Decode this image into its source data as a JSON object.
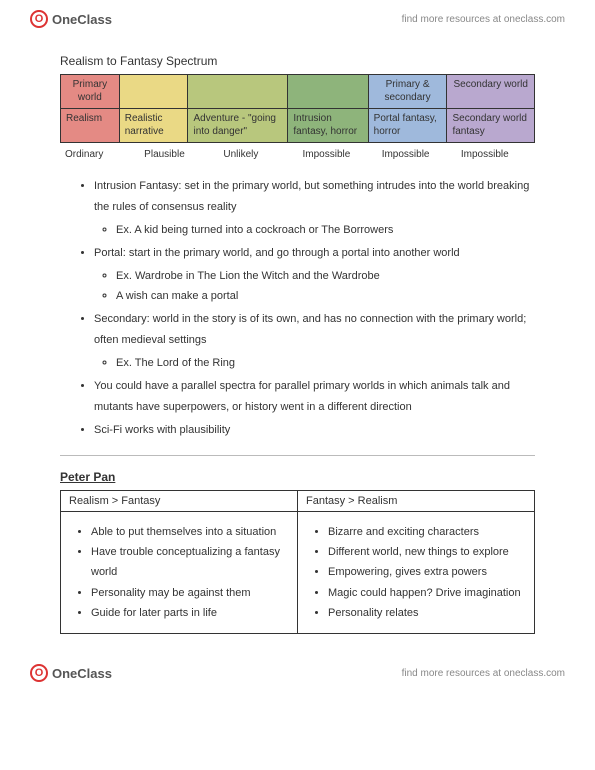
{
  "brand": {
    "icon_letter": "O",
    "name": "OneClass",
    "tagline": "find more resources at oneclass.com",
    "icon_border_color": "#d33"
  },
  "title": "Realism to Fantasy Spectrum",
  "spectrum": {
    "header_cells": [
      {
        "text": "Primary world",
        "bg": "#e48a84",
        "align": "center"
      },
      {
        "text": "",
        "bg": "#ead985",
        "align": "left"
      },
      {
        "text": "",
        "bg": "#b8c77d",
        "align": "left"
      },
      {
        "text": "",
        "bg": "#8eb47b",
        "align": "left"
      },
      {
        "text": "Primary & secondary",
        "bg": "#9fb9dc",
        "align": "center"
      },
      {
        "text": "Secondary world",
        "bg": "#b9a8cf",
        "align": "center"
      }
    ],
    "row_cells": [
      {
        "text": "Realism",
        "bg": "#e48a84"
      },
      {
        "text": "Realistic narrative",
        "bg": "#ead985"
      },
      {
        "text": "Adventure - \"going into danger\"",
        "bg": "#b8c77d"
      },
      {
        "text": "Intrusion fantasy, horror",
        "bg": "#8eb47b"
      },
      {
        "text": "Portal fantasy, horror",
        "bg": "#9fb9dc"
      },
      {
        "text": "Secondary world fantasy",
        "bg": "#b9a8cf"
      }
    ],
    "bottom_labels": [
      "Ordinary",
      "Plausible",
      "Unlikely",
      "Impossible",
      "Impossible",
      "Impossible"
    ]
  },
  "notes": [
    {
      "text": "Intrusion Fantasy: set in the primary world, but something intrudes into the world breaking the rules of consensus reality",
      "sub": [
        "Ex. A kid being turned into a cockroach or The Borrowers"
      ]
    },
    {
      "text": "Portal: start in the primary world, and go through a portal into another world",
      "sub": [
        "Ex. Wardrobe in The Lion the Witch and the Wardrobe",
        "A wish can make a portal"
      ]
    },
    {
      "text": "Secondary: world in the story is of its own, and has no connection with the primary world; often medieval settings",
      "sub": [
        "Ex. The Lord of the Ring"
      ]
    },
    {
      "text": "You could have a parallel spectra for parallel primary worlds in which animals talk and mutants have superpowers, or history went in a different direction",
      "sub": []
    },
    {
      "text": "Sci-Fi works with plausibility",
      "sub": []
    }
  ],
  "peter": {
    "title": "Peter Pan",
    "left_head": "Realism > Fantasy",
    "right_head": "Fantasy > Realism",
    "left_items": [
      "Able to put themselves into a situation",
      "Have trouble conceptualizing a fantasy world",
      "Personality may be against them",
      "Guide for later parts in life"
    ],
    "right_items": [
      "Bizarre and exciting characters",
      "Different world, new things to explore",
      "Empowering, gives extra powers",
      "Magic could happen? Drive imagination",
      "Personality relates"
    ]
  }
}
